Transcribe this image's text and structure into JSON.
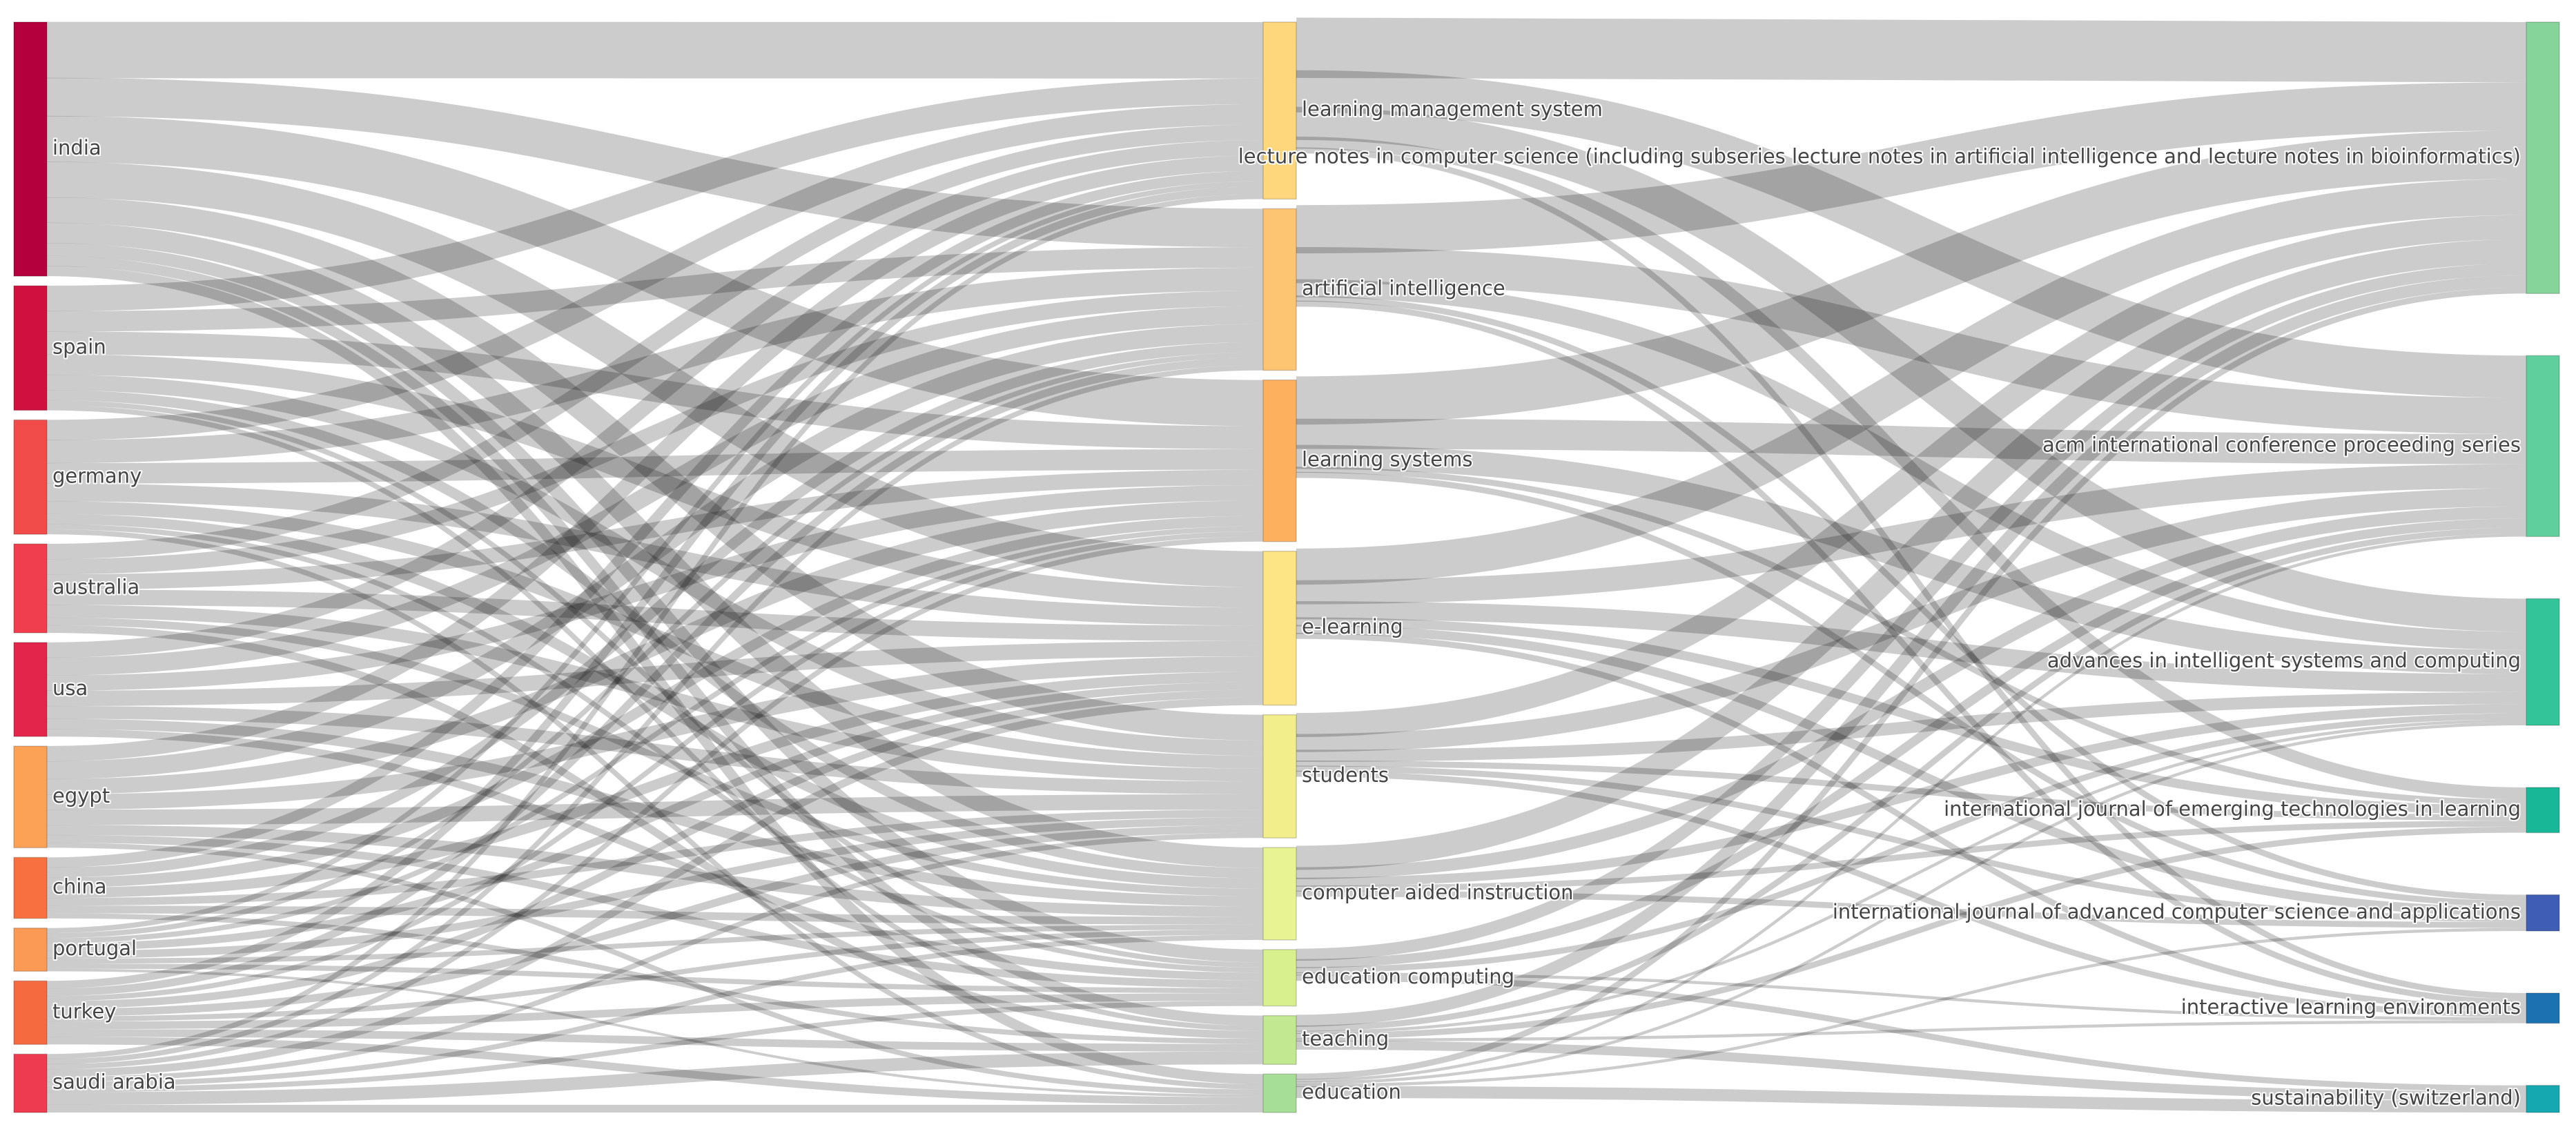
{
  "chart_data": {
    "type": "sankey",
    "columns": [
      {
        "name": "",
        "nodes": [
          {
            "id": "india",
            "label": "india",
            "value": 100,
            "color": "#b5003e"
          },
          {
            "id": "spain",
            "label": "spain",
            "value": 49,
            "color": "#d0103e"
          },
          {
            "id": "germany",
            "label": "germany",
            "value": 45,
            "color": "#f14c4a"
          },
          {
            "id": "australia",
            "label": "australia",
            "value": 35,
            "color": "#f03e4e"
          },
          {
            "id": "usa",
            "label": "usa",
            "value": 37,
            "color": "#e3244b"
          },
          {
            "id": "egypt",
            "label": "egypt",
            "value": 40,
            "color": "#fba257"
          },
          {
            "id": "china",
            "label": "china",
            "value": 24,
            "color": "#f8703f"
          },
          {
            "id": "portugal",
            "label": "portugal",
            "value": 17,
            "color": "#fb9a55"
          },
          {
            "id": "turkey",
            "label": "turkey",
            "value": 25,
            "color": "#f66a40"
          },
          {
            "id": "saudi_arabia",
            "label": "saudi arabia",
            "value": 23,
            "color": "#ee3b50"
          }
        ]
      },
      {
        "name": "",
        "nodes": [
          {
            "id": "lms",
            "label": "learning management system",
            "value": 69,
            "color": "#fed67c"
          },
          {
            "id": "ai",
            "label": "artificial intelligence",
            "value": 63,
            "color": "#fdc572"
          },
          {
            "id": "ls",
            "label": "learning systems",
            "value": 63,
            "color": "#fdb15f"
          },
          {
            "id": "el",
            "label": "e-learning",
            "value": 60,
            "color": "#fde485"
          },
          {
            "id": "students",
            "label": "students",
            "value": 48,
            "color": "#f2ee8c"
          },
          {
            "id": "cai",
            "label": "computer aided instruction",
            "value": 36,
            "color": "#e8f494"
          },
          {
            "id": "ec",
            "label": "education computing",
            "value": 22,
            "color": "#d9f08f"
          },
          {
            "id": "teaching",
            "label": "teaching",
            "value": 19,
            "color": "#c2e892"
          },
          {
            "id": "education",
            "label": "education",
            "value": 15,
            "color": "#a6dd97"
          }
        ]
      },
      {
        "name": "",
        "nodes": [
          {
            "id": "lncs",
            "label": "lecture notes in computer science (including subseries lecture notes in artificial intelligence and lecture notes in bioinformatics)",
            "value": 90,
            "color": "#87d49b"
          },
          {
            "id": "acm",
            "label": "acm international conference proceeding series",
            "value": 60,
            "color": "#5fcf9d"
          },
          {
            "id": "aisc",
            "label": "advances in intelligent systems and computing",
            "value": 42,
            "color": "#34c49a"
          },
          {
            "id": "ijet",
            "label": "international journal of emerging technologies in learning",
            "value": 15,
            "color": "#18b798"
          },
          {
            "id": "ijacsa",
            "label": "international journal of advanced computer science and applications",
            "value": 12,
            "color": "#3f5db4"
          },
          {
            "id": "ile",
            "label": "interactive learning environments",
            "value": 10,
            "color": "#1c72b0"
          },
          {
            "id": "sust",
            "label": "sustainability (switzerland)",
            "value": 9,
            "color": "#15a8b0"
          }
        ]
      }
    ],
    "links": [
      {
        "source": "india",
        "target": "lms",
        "value": 22
      },
      {
        "source": "india",
        "target": "ai",
        "value": 15
      },
      {
        "source": "india",
        "target": "ls",
        "value": 18
      },
      {
        "source": "india",
        "target": "el",
        "value": 14
      },
      {
        "source": "india",
        "target": "students",
        "value": 10
      },
      {
        "source": "india",
        "target": "cai",
        "value": 8
      },
      {
        "source": "india",
        "target": "ec",
        "value": 5
      },
      {
        "source": "india",
        "target": "teaching",
        "value": 4
      },
      {
        "source": "india",
        "target": "education",
        "value": 4
      },
      {
        "source": "spain",
        "target": "lms",
        "value": 10
      },
      {
        "source": "spain",
        "target": "ai",
        "value": 8
      },
      {
        "source": "spain",
        "target": "ls",
        "value": 9
      },
      {
        "source": "spain",
        "target": "el",
        "value": 8
      },
      {
        "source": "spain",
        "target": "students",
        "value": 6
      },
      {
        "source": "spain",
        "target": "cai",
        "value": 4
      },
      {
        "source": "spain",
        "target": "ec",
        "value": 2
      },
      {
        "source": "spain",
        "target": "teaching",
        "value": 2
      },
      {
        "source": "germany",
        "target": "lms",
        "value": 8
      },
      {
        "source": "germany",
        "target": "ai",
        "value": 9
      },
      {
        "source": "germany",
        "target": "ls",
        "value": 8
      },
      {
        "source": "germany",
        "target": "el",
        "value": 7
      },
      {
        "source": "germany",
        "target": "students",
        "value": 5
      },
      {
        "source": "germany",
        "target": "cai",
        "value": 4
      },
      {
        "source": "germany",
        "target": "ec",
        "value": 2
      },
      {
        "source": "germany",
        "target": "education",
        "value": 2
      },
      {
        "source": "australia",
        "target": "lms",
        "value": 6
      },
      {
        "source": "australia",
        "target": "ai",
        "value": 6
      },
      {
        "source": "australia",
        "target": "ls",
        "value": 6
      },
      {
        "source": "australia",
        "target": "el",
        "value": 6
      },
      {
        "source": "australia",
        "target": "students",
        "value": 5
      },
      {
        "source": "australia",
        "target": "cai",
        "value": 3
      },
      {
        "source": "australia",
        "target": "teaching",
        "value": 3
      },
      {
        "source": "usa",
        "target": "lms",
        "value": 6
      },
      {
        "source": "usa",
        "target": "ai",
        "value": 7
      },
      {
        "source": "usa",
        "target": "ls",
        "value": 6
      },
      {
        "source": "usa",
        "target": "el",
        "value": 6
      },
      {
        "source": "usa",
        "target": "students",
        "value": 5
      },
      {
        "source": "usa",
        "target": "cai",
        "value": 4
      },
      {
        "source": "usa",
        "target": "ec",
        "value": 3
      },
      {
        "source": "egypt",
        "target": "lms",
        "value": 6
      },
      {
        "source": "egypt",
        "target": "ai",
        "value": 7
      },
      {
        "source": "egypt",
        "target": "ls",
        "value": 6
      },
      {
        "source": "egypt",
        "target": "el",
        "value": 6
      },
      {
        "source": "egypt",
        "target": "students",
        "value": 6
      },
      {
        "source": "egypt",
        "target": "cai",
        "value": 4
      },
      {
        "source": "egypt",
        "target": "ec",
        "value": 3
      },
      {
        "source": "egypt",
        "target": "education",
        "value": 2
      },
      {
        "source": "china",
        "target": "lms",
        "value": 4
      },
      {
        "source": "china",
        "target": "ai",
        "value": 4
      },
      {
        "source": "china",
        "target": "ls",
        "value": 4
      },
      {
        "source": "china",
        "target": "el",
        "value": 4
      },
      {
        "source": "china",
        "target": "students",
        "value": 3
      },
      {
        "source": "china",
        "target": "cai",
        "value": 3
      },
      {
        "source": "china",
        "target": "teaching",
        "value": 2
      },
      {
        "source": "portugal",
        "target": "lms",
        "value": 2
      },
      {
        "source": "portugal",
        "target": "ai",
        "value": 2
      },
      {
        "source": "portugal",
        "target": "ls",
        "value": 2
      },
      {
        "source": "portugal",
        "target": "el",
        "value": 3
      },
      {
        "source": "portugal",
        "target": "students",
        "value": 3
      },
      {
        "source": "portugal",
        "target": "cai",
        "value": 2
      },
      {
        "source": "portugal",
        "target": "ec",
        "value": 2
      },
      {
        "source": "portugal",
        "target": "education",
        "value": 1
      },
      {
        "source": "turkey",
        "target": "lms",
        "value": 3
      },
      {
        "source": "turkey",
        "target": "ai",
        "value": 3
      },
      {
        "source": "turkey",
        "target": "ls",
        "value": 2
      },
      {
        "source": "turkey",
        "target": "el",
        "value": 3
      },
      {
        "source": "turkey",
        "target": "students",
        "value": 3
      },
      {
        "source": "turkey",
        "target": "cai",
        "value": 2
      },
      {
        "source": "turkey",
        "target": "ec",
        "value": 3
      },
      {
        "source": "turkey",
        "target": "teaching",
        "value": 3
      },
      {
        "source": "turkey",
        "target": "education",
        "value": 3
      },
      {
        "source": "saudi_arabia",
        "target": "lms",
        "value": 2
      },
      {
        "source": "saudi_arabia",
        "target": "ai",
        "value": 2
      },
      {
        "source": "saudi_arabia",
        "target": "ls",
        "value": 2
      },
      {
        "source": "saudi_arabia",
        "target": "el",
        "value": 3
      },
      {
        "source": "saudi_arabia",
        "target": "students",
        "value": 2
      },
      {
        "source": "saudi_arabia",
        "target": "cai",
        "value": 2
      },
      {
        "source": "saudi_arabia",
        "target": "ec",
        "value": 2
      },
      {
        "source": "saudi_arabia",
        "target": "teaching",
        "value": 5
      },
      {
        "source": "saudi_arabia",
        "target": "education",
        "value": 3
      },
      {
        "source": "lms",
        "target": "lncs",
        "value": 20
      },
      {
        "source": "lms",
        "target": "acm",
        "value": 14
      },
      {
        "source": "lms",
        "target": "aisc",
        "value": 11
      },
      {
        "source": "lms",
        "target": "ijet",
        "value": 4
      },
      {
        "source": "lms",
        "target": "ile",
        "value": 2
      },
      {
        "source": "ai",
        "target": "lncs",
        "value": 16
      },
      {
        "source": "ai",
        "target": "acm",
        "value": 12
      },
      {
        "source": "ai",
        "target": "aisc",
        "value": 6
      },
      {
        "source": "ai",
        "target": "ijacsa",
        "value": 2
      },
      {
        "source": "ai",
        "target": "ile",
        "value": 2
      },
      {
        "source": "ls",
        "target": "lncs",
        "value": 16
      },
      {
        "source": "ls",
        "target": "acm",
        "value": 10
      },
      {
        "source": "ls",
        "target": "aisc",
        "value": 8
      },
      {
        "source": "ls",
        "target": "ijet",
        "value": 2
      },
      {
        "source": "ls",
        "target": "ijacsa",
        "value": 2
      },
      {
        "source": "el",
        "target": "lncs",
        "value": 12
      },
      {
        "source": "el",
        "target": "acm",
        "value": 8
      },
      {
        "source": "el",
        "target": "aisc",
        "value": 6
      },
      {
        "source": "el",
        "target": "ijet",
        "value": 3
      },
      {
        "source": "el",
        "target": "ijacsa",
        "value": 3
      },
      {
        "source": "el",
        "target": "ile",
        "value": 2
      },
      {
        "source": "students",
        "target": "lncs",
        "value": 8
      },
      {
        "source": "students",
        "target": "acm",
        "value": 6
      },
      {
        "source": "students",
        "target": "aisc",
        "value": 4
      },
      {
        "source": "students",
        "target": "ijet",
        "value": 2
      },
      {
        "source": "students",
        "target": "ijacsa",
        "value": 2
      },
      {
        "source": "students",
        "target": "ile",
        "value": 2
      },
      {
        "source": "cai",
        "target": "lncs",
        "value": 8
      },
      {
        "source": "cai",
        "target": "acm",
        "value": 4
      },
      {
        "source": "cai",
        "target": "aisc",
        "value": 3
      },
      {
        "source": "cai",
        "target": "ijet",
        "value": 2
      },
      {
        "source": "cai",
        "target": "ijacsa",
        "value": 2
      },
      {
        "source": "ec",
        "target": "lncs",
        "value": 4
      },
      {
        "source": "ec",
        "target": "acm",
        "value": 3
      },
      {
        "source": "ec",
        "target": "aisc",
        "value": 2
      },
      {
        "source": "ec",
        "target": "ile",
        "value": 1
      },
      {
        "source": "ec",
        "target": "sust",
        "value": 2
      },
      {
        "source": "teaching",
        "target": "lncs",
        "value": 4
      },
      {
        "source": "teaching",
        "target": "acm",
        "value": 2
      },
      {
        "source": "teaching",
        "target": "aisc",
        "value": 1
      },
      {
        "source": "teaching",
        "target": "ijet",
        "value": 2
      },
      {
        "source": "teaching",
        "target": "ile",
        "value": 1
      },
      {
        "source": "teaching",
        "target": "sust",
        "value": 3
      },
      {
        "source": "education",
        "target": "lncs",
        "value": 2
      },
      {
        "source": "education",
        "target": "acm",
        "value": 1
      },
      {
        "source": "education",
        "target": "aisc",
        "value": 1
      },
      {
        "source": "education",
        "target": "ijacsa",
        "value": 1
      },
      {
        "source": "education",
        "target": "sust",
        "value": 4
      }
    ]
  }
}
